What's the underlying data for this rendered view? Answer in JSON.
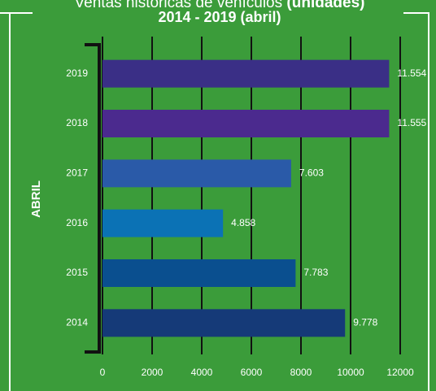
{
  "chart_data": {
    "type": "bar",
    "orientation": "horizontal",
    "title": "Ventas históricas de vehículos",
    "title_unit": "(unidades)",
    "subtitle": "2014 - 2019 (abril)",
    "y_label": "ABRIL",
    "categories": [
      "2019",
      "2018",
      "2017",
      "2016",
      "2015",
      "2014"
    ],
    "values": [
      11554,
      11555,
      7603,
      4858,
      7783,
      9778
    ],
    "value_labels": [
      "11.554",
      "11.555",
      "7.603",
      "4.858",
      "7.783",
      "9.778"
    ],
    "colors": [
      "#3a2f86",
      "#4b2a8e",
      "#2a5aa8",
      "#0b72b5",
      "#0a4f8f",
      "#153a78"
    ],
    "xlim": [
      0,
      12000
    ],
    "xticks": [
      0,
      2000,
      4000,
      6000,
      8000,
      10000,
      12000
    ],
    "grid": true
  }
}
